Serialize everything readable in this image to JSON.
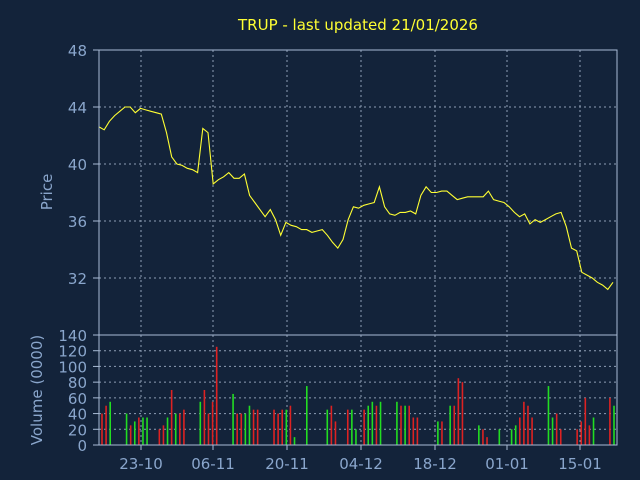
{
  "chart_data": {
    "type": "line",
    "title": "TRUP - last updated 21/01/2026",
    "colors": {
      "background": "#13233a",
      "axis": "#a9bbd6",
      "grid": "#8f9fb5",
      "price_line": "#ffff33",
      "title": "#ffff33",
      "labels": "#8aa6cc",
      "volume_up": "#22dd22",
      "volume_down": "#dd2222"
    },
    "grid": true,
    "x_tick_labels": [
      "23-10",
      "06-11",
      "20-11",
      "04-12",
      "18-12",
      "01-01",
      "15-01"
    ],
    "price_panel": {
      "ylabel": "Price",
      "ylim": [
        28,
        48
      ],
      "yticks": [
        48,
        44,
        40,
        36,
        32
      ],
      "series": [
        {
          "values": [
            42.6,
            42.4,
            43.0,
            43.4,
            43.7,
            44.0,
            44.0,
            43.6,
            43.9,
            43.8,
            43.7,
            43.6,
            43.5,
            42.2,
            40.5,
            40.0,
            39.9,
            39.7,
            39.6,
            39.4,
            42.5,
            42.2,
            38.6,
            38.9,
            39.1,
            39.4,
            39.0,
            39.0,
            39.3,
            37.8,
            37.3,
            36.8,
            36.3,
            36.8,
            36.1,
            35.0,
            35.9,
            35.7,
            35.6,
            35.4,
            35.4,
            35.2,
            35.3,
            35.4,
            35.0,
            34.5,
            34.1,
            34.7,
            36.1,
            37.0,
            36.9,
            37.1,
            37.2,
            37.3,
            38.4,
            37.0,
            36.5,
            36.4,
            36.6,
            36.6,
            36.7,
            36.5,
            37.8,
            38.4,
            38.0,
            38.0,
            38.1,
            38.1,
            37.8,
            37.5,
            37.6,
            37.7,
            37.7,
            37.7,
            37.7,
            38.1,
            37.5,
            37.4,
            37.3,
            37.0,
            36.6,
            36.3,
            36.5,
            35.8,
            36.1,
            35.9,
            36.1,
            36.3,
            36.5,
            36.6,
            35.6,
            34.1,
            33.9,
            32.4,
            32.2,
            32.0,
            31.7,
            31.5,
            31.2,
            31.7
          ]
        }
      ]
    },
    "volume_panel": {
      "ylabel": "Volume (0000)",
      "ylim": [
        0,
        140
      ],
      "yticks": [
        140,
        120,
        100,
        80,
        60,
        40,
        20,
        0
      ],
      "series": [
        {
          "name": "",
          "values": [
            40,
            50,
            55,
            0,
            0,
            0,
            40,
            25,
            30,
            35,
            35,
            35,
            0,
            0,
            20,
            25,
            35,
            70,
            40,
            40,
            45,
            0,
            0,
            0,
            55,
            70,
            40,
            55,
            125,
            0,
            0,
            0,
            65,
            40,
            40,
            40,
            50,
            45,
            45,
            0,
            0,
            0,
            45,
            40,
            45,
            45,
            50,
            10,
            0,
            0,
            75,
            0,
            0,
            0,
            0,
            45,
            50,
            30,
            0,
            0,
            45,
            45,
            20,
            0,
            45,
            50,
            55,
            50,
            55,
            0,
            0,
            0,
            55,
            50,
            50,
            50,
            35,
            35,
            0,
            0,
            0,
            0,
            30,
            30,
            0,
            50,
            50,
            85,
            80,
            0,
            0,
            0,
            25,
            20,
            10,
            0,
            0,
            20,
            0,
            0,
            20,
            25,
            35,
            55,
            50,
            35,
            0,
            0,
            0,
            75,
            35,
            40,
            20,
            0,
            0,
            0,
            20,
            30,
            60,
            25,
            35,
            0,
            0,
            0,
            60,
            50
          ],
          "colors": [
            "d",
            "d",
            "u",
            "u",
            "u",
            "u",
            "u",
            "d",
            "u",
            "d",
            "u",
            "u",
            "u",
            "u",
            "d",
            "d",
            "u",
            "d",
            "u",
            "d",
            "d",
            "u",
            "u",
            "u",
            "u",
            "d",
            "d",
            "d",
            "d",
            "u",
            "u",
            "u",
            "u",
            "d",
            "d",
            "u",
            "u",
            "d",
            "d",
            "u",
            "u",
            "u",
            "d",
            "d",
            "d",
            "u",
            "d",
            "u",
            "u",
            "u",
            "u",
            "u",
            "u",
            "u",
            "u",
            "u",
            "d",
            "d",
            "u",
            "u",
            "d",
            "u",
            "u",
            "u",
            "d",
            "u",
            "u",
            "d",
            "u",
            "u",
            "u",
            "u",
            "u",
            "d",
            "u",
            "d",
            "d",
            "d",
            "u",
            "u",
            "u",
            "u",
            "u",
            "d",
            "u",
            "u",
            "d",
            "d",
            "d",
            "u",
            "u",
            "u",
            "u",
            "d",
            "d",
            "u",
            "u",
            "u",
            "u",
            "u",
            "u",
            "u",
            "d",
            "d",
            "d",
            "d",
            "u",
            "u",
            "u",
            "u",
            "u",
            "d",
            "d",
            "u",
            "u",
            "u",
            "d",
            "d",
            "d",
            "d",
            "u",
            "u",
            "u",
            "u",
            "d",
            "u"
          ]
        }
      ]
    }
  }
}
